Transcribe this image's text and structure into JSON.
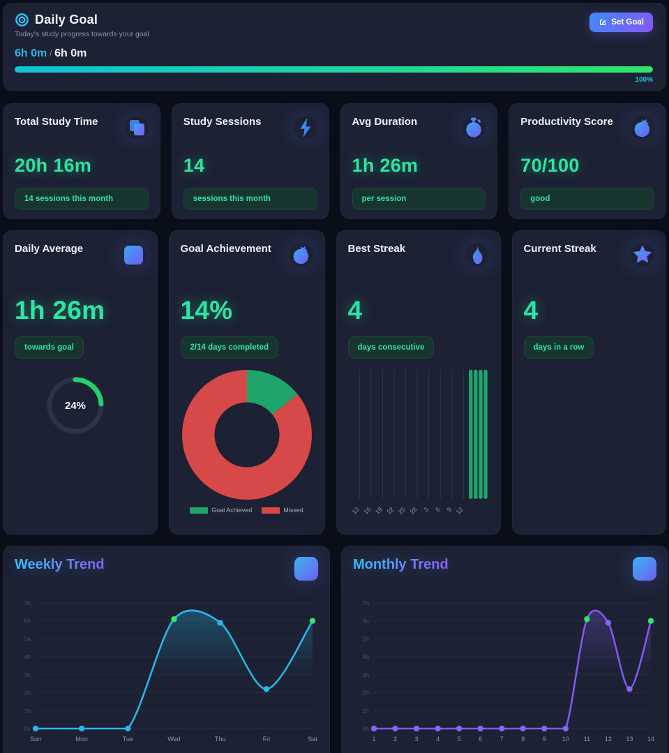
{
  "header": {
    "icon": "target-icon",
    "title": "Daily Goal",
    "subtitle": "Today's study progress towards your goal",
    "set_goal_button": "Set Goal",
    "progress_current": "6h 0m",
    "separator": " / ",
    "progress_goal": "6h 0m",
    "progress_percent": 100,
    "progress_percent_label": "100%"
  },
  "stat_cards": [
    {
      "title": "Total Study Time",
      "icon": "books-icon",
      "value": "20h 16m",
      "badge": "14 sessions this month"
    },
    {
      "title": "Study Sessions",
      "icon": "lightning-icon",
      "value": "14",
      "badge": "sessions this month"
    },
    {
      "title": "Avg Duration",
      "icon": "stopwatch-icon",
      "value": "1h 26m",
      "badge": "per session"
    },
    {
      "title": "Productivity Score",
      "icon": "pomegranate-icon",
      "value": "70/100",
      "badge": "good"
    }
  ],
  "detail_cards": [
    {
      "title": "Daily Average",
      "icon": "calendar-icon",
      "value": "1h 26m",
      "badge": "towards goal",
      "ring_percent": 24,
      "ring_label": "24%",
      "ring_color": "#22d36b",
      "ring_track": "#2c3349"
    },
    {
      "title": "Goal Achievement",
      "icon": "pomegranate-icon",
      "value": "14%",
      "badge": "2/14 days completed"
    },
    {
      "title": "Best Streak",
      "icon": "flame-icon",
      "value": "4",
      "badge": "days consecutive"
    },
    {
      "title": "Current Streak",
      "icon": "star-icon",
      "value": "4",
      "badge": "days in a row"
    }
  ],
  "chart_data": [
    {
      "id": "goal-donut",
      "type": "pie",
      "labels": [
        "Goal Achieved",
        "Missed"
      ],
      "values": [
        2,
        12
      ],
      "colors": [
        "#1fa56b",
        "#d74848"
      ],
      "inner_radius_ratio": 0.5,
      "legend_position": "bottom"
    },
    {
      "id": "streak-bars",
      "type": "bar",
      "tick_labels": [
        "13",
        "16",
        "19",
        "22",
        "25",
        "28",
        "3",
        "6",
        "9",
        "12"
      ],
      "bar_days": [
        "11",
        "12",
        "13",
        "14"
      ],
      "values": [
        1,
        1,
        1,
        1
      ],
      "ylim": [
        0,
        1
      ],
      "bar_color": "#1fa56b",
      "grid": true
    },
    {
      "id": "weekly",
      "type": "line",
      "title": "Weekly Trend",
      "categories": [
        "Sun",
        "Mon",
        "Tue",
        "Wed",
        "Thu",
        "Fri",
        "Sat"
      ],
      "values": [
        0,
        0,
        0,
        6.1,
        5.9,
        2.2,
        6
      ],
      "goal_met_indices": [
        3,
        6
      ],
      "line_color": "#29b6e8",
      "point_color": "#29b6e8",
      "goal_point_color": "#2ee66b",
      "ylim": [
        0,
        7
      ],
      "ytick_suffix": "h",
      "grid": true,
      "legend": "none"
    },
    {
      "id": "monthly",
      "type": "line",
      "title": "Monthly Trend",
      "categories": [
        "1",
        "2",
        "3",
        "4",
        "5",
        "6",
        "7",
        "8",
        "9",
        "10",
        "11",
        "12",
        "13",
        "14"
      ],
      "values": [
        0,
        0,
        0,
        0,
        0,
        0,
        0,
        0,
        0,
        0,
        6.1,
        5.9,
        2.2,
        6
      ],
      "goal_met_indices": [
        10,
        13
      ],
      "line_color": "#8059f0",
      "point_color": "#8a63f2",
      "goal_point_color": "#2ee66b",
      "ylim": [
        0,
        7
      ],
      "ytick_suffix": "h",
      "grid": true,
      "legend": "none"
    }
  ]
}
